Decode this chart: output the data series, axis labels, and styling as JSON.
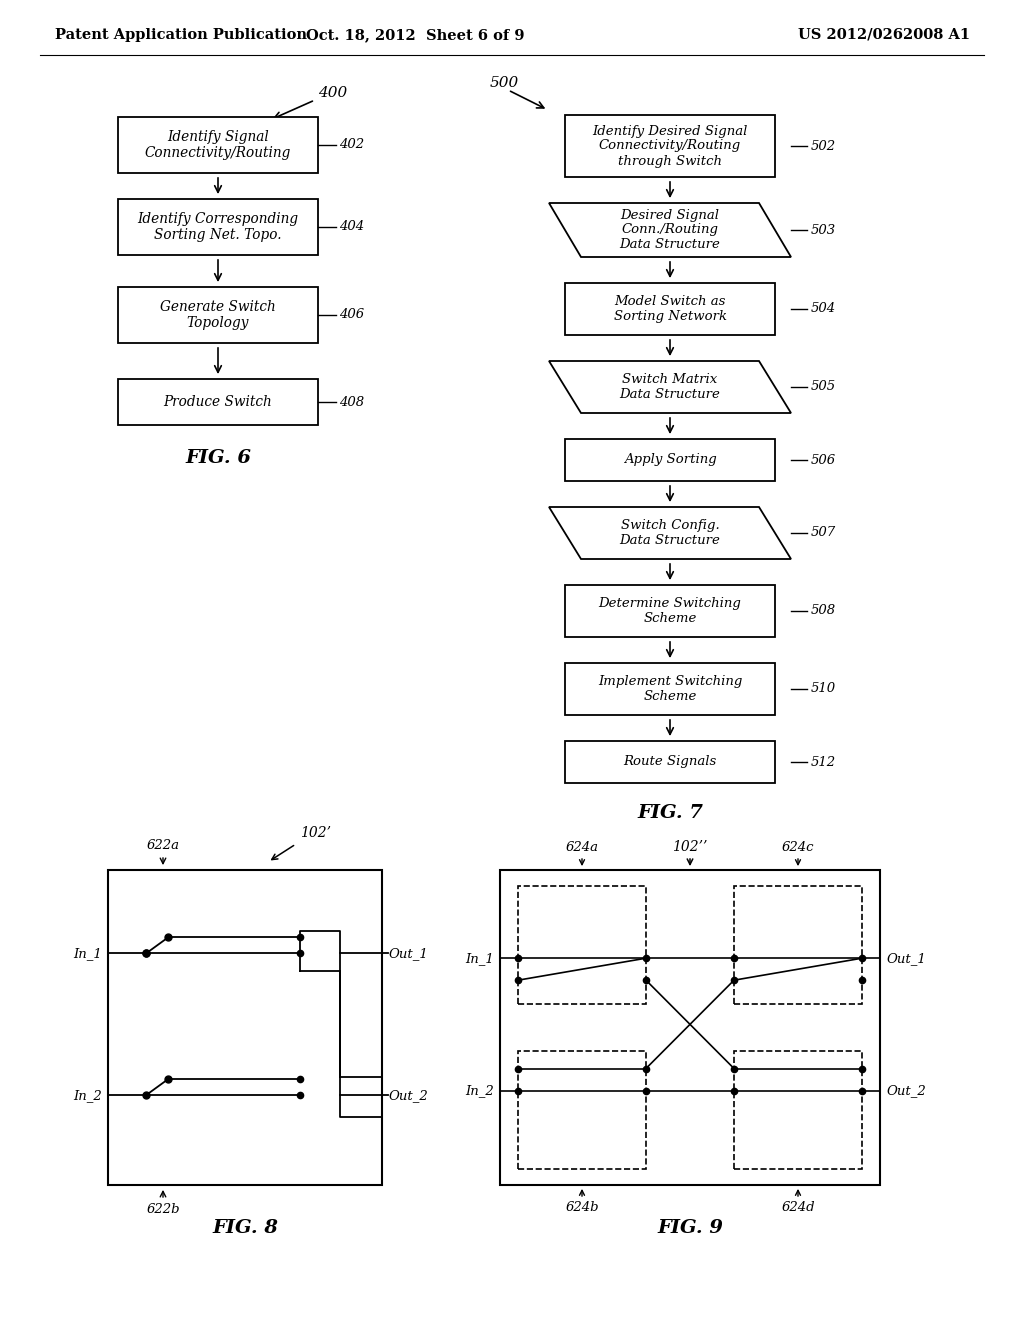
{
  "bg_color": "#ffffff",
  "header_left": "Patent Application Publication",
  "header_mid": "Oct. 18, 2012  Sheet 6 of 9",
  "header_right": "US 2012/0262008 A1",
  "fig6_caption": "FIG. 6",
  "fig7_caption": "FIG. 7",
  "fig8_caption": "FIG. 8",
  "fig9_caption": "FIG. 9",
  "fig6_ref": "400",
  "fig7_ref": "500",
  "fig8_ref1": "622a",
  "fig8_ref2": "622b",
  "fig8_ref3": "102’",
  "fig9_ref1": "624a",
  "fig9_ref2": "624b",
  "fig9_ref3": "624c",
  "fig9_ref4": "624d",
  "fig9_ref5": "102’’",
  "fig6_boxes": [
    {
      "label": "Identify Signal\nConnectivity/Routing",
      "num": "402"
    },
    {
      "label": "Identify Corresponding\nSorting Net. Topo.",
      "num": "404"
    },
    {
      "label": "Generate Switch\nTopology",
      "num": "406"
    },
    {
      "label": "Produce Switch",
      "num": "408"
    }
  ],
  "fig7_steps": [
    {
      "label": "Identify Desired Signal\nConnectivity/Routing\nthrough Switch",
      "num": "502",
      "shape": "rect"
    },
    {
      "label": "Desired Signal\nConn./Routing\nData Structure",
      "num": "503",
      "shape": "para"
    },
    {
      "label": "Model Switch as\nSorting Network",
      "num": "504",
      "shape": "rect"
    },
    {
      "label": "Switch Matrix\nData Structure",
      "num": "505",
      "shape": "para"
    },
    {
      "label": "Apply Sorting",
      "num": "506",
      "shape": "rect"
    },
    {
      "label": "Switch Config.\nData Structure",
      "num": "507",
      "shape": "para"
    },
    {
      "label": "Determine Switching\nScheme",
      "num": "508",
      "shape": "rect"
    },
    {
      "label": "Implement Switching\nScheme",
      "num": "510",
      "shape": "rect"
    },
    {
      "label": "Route Signals",
      "num": "512",
      "shape": "rect"
    }
  ]
}
